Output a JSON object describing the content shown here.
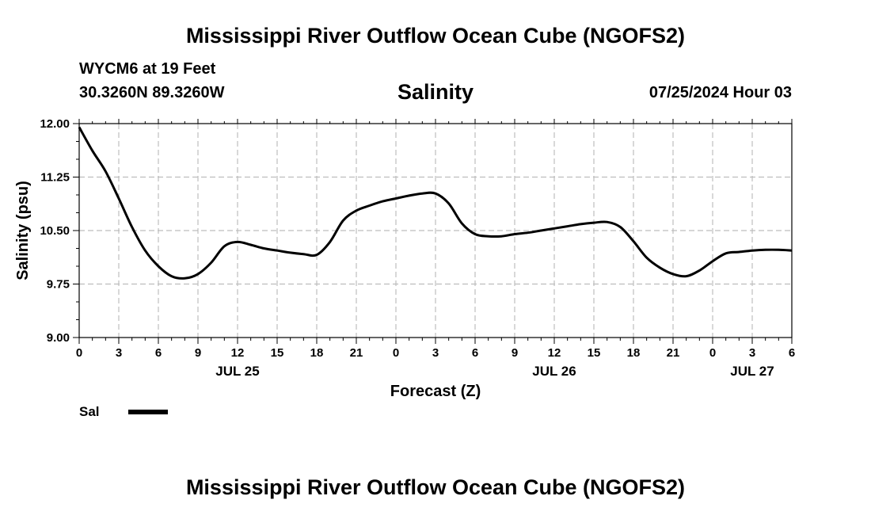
{
  "page": {
    "title": "Mississippi River Outflow Ocean Cube (NGOFS2)",
    "footer_title": "Mississippi River Outflow Ocean Cube (NGOFS2)"
  },
  "station": {
    "name_depth": "WYCM6 at 19 Feet",
    "coords": "30.3260N  89.3260W",
    "date": "07/25/2024 Hour 03"
  },
  "legend": {
    "label": "Sal",
    "color": "#000000"
  },
  "chart_data": {
    "type": "line",
    "title": "Salinity",
    "xlabel": "Forecast (Z)",
    "ylabel": "Salinity (psu)",
    "ylim": [
      9.0,
      12.0
    ],
    "yticks": [
      "12.00",
      "11.25",
      "10.50",
      "9.75",
      "9.00"
    ],
    "ytick_values": [
      12.0,
      11.25,
      10.5,
      9.75,
      9.0
    ],
    "xlim": [
      0,
      54
    ],
    "xtick_hours": [
      0,
      3,
      6,
      9,
      12,
      15,
      18,
      21,
      24,
      27,
      30,
      33,
      36,
      39,
      42,
      45,
      48,
      51,
      54
    ],
    "xtick_labels": [
      "0",
      "3",
      "6",
      "9",
      "12",
      "15",
      "18",
      "21",
      "0",
      "3",
      "6",
      "9",
      "12",
      "15",
      "18",
      "21",
      "0",
      "3",
      "6"
    ],
    "day_labels": [
      {
        "hour": 12,
        "label": "JUL 25"
      },
      {
        "hour": 36,
        "label": "JUL 26"
      },
      {
        "hour": 51,
        "label": "JUL 27"
      }
    ],
    "grid": true,
    "series": [
      {
        "name": "Sal",
        "color": "#000000",
        "x": [
          0,
          1,
          2,
          3,
          4,
          5,
          6,
          7,
          8,
          9,
          10,
          11,
          12,
          13,
          14,
          15,
          16,
          17,
          18,
          19,
          20,
          21,
          22,
          23,
          24,
          25,
          26,
          27,
          28,
          29,
          30,
          31,
          32,
          33,
          34,
          35,
          36,
          37,
          38,
          39,
          40,
          41,
          42,
          43,
          44,
          45,
          46,
          47,
          48,
          49,
          50,
          51,
          52,
          53,
          54
        ],
        "values": [
          11.95,
          11.62,
          11.33,
          10.95,
          10.55,
          10.22,
          10.0,
          9.86,
          9.83,
          9.89,
          10.05,
          10.28,
          10.34,
          10.3,
          10.25,
          10.22,
          10.19,
          10.17,
          10.16,
          10.34,
          10.64,
          10.78,
          10.85,
          10.91,
          10.95,
          10.99,
          11.02,
          11.02,
          10.88,
          10.6,
          10.45,
          10.42,
          10.42,
          10.45,
          10.47,
          10.5,
          10.53,
          10.56,
          10.59,
          10.61,
          10.62,
          10.55,
          10.35,
          10.12,
          9.98,
          9.89,
          9.86,
          9.94,
          10.07,
          10.18,
          10.2,
          10.22,
          10.23,
          10.23,
          10.22
        ]
      }
    ]
  }
}
